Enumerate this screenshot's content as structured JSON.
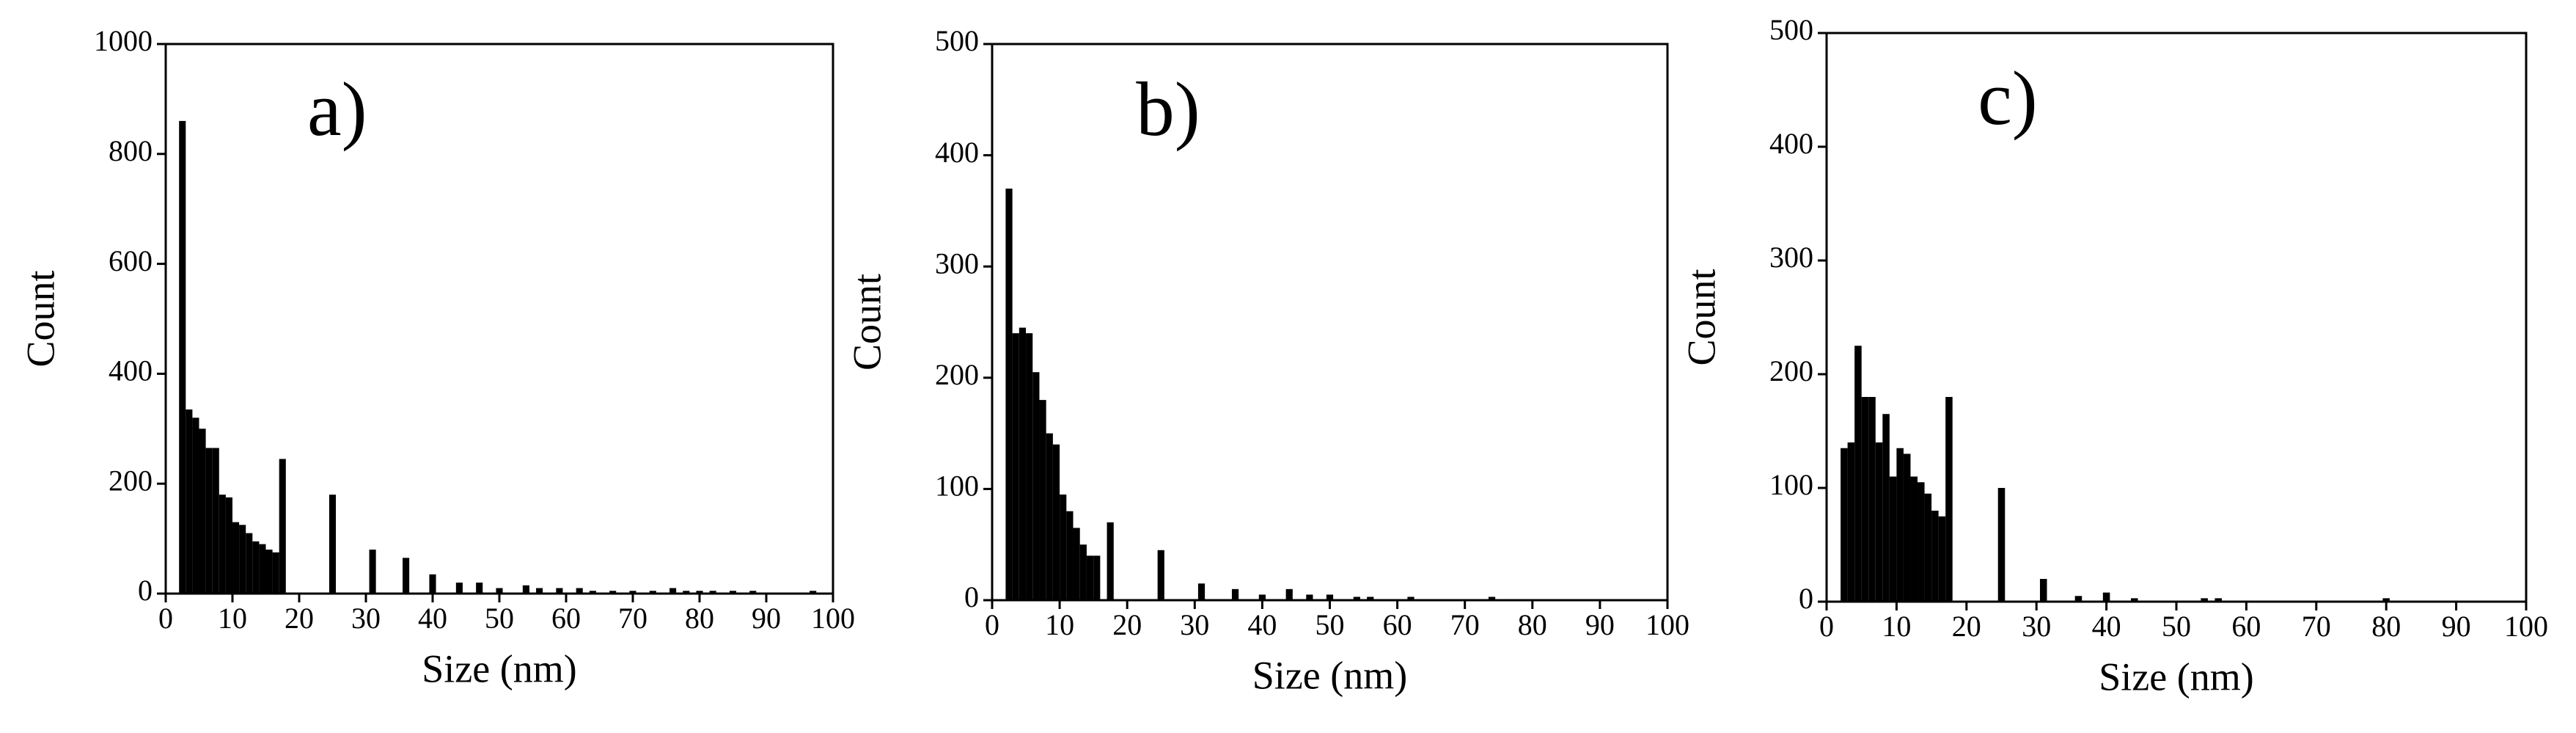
{
  "chart_data": [
    {
      "type": "bar",
      "annotation": "a)",
      "xlabel": "Size (nm)",
      "ylabel": "Count",
      "color": "#000000",
      "x": [
        2.5,
        3.5,
        4.5,
        5.5,
        6.5,
        7.5,
        8.5,
        9.5,
        10.5,
        11.5,
        12.5,
        13.5,
        14.5,
        15.5,
        16.5,
        17.5,
        25,
        31,
        36,
        40,
        44,
        47,
        50,
        54,
        56,
        59,
        62,
        64,
        67,
        70,
        73,
        76,
        78,
        80,
        82,
        85,
        88,
        97
      ],
      "values": [
        860,
        335,
        320,
        300,
        265,
        265,
        180,
        175,
        130,
        125,
        110,
        95,
        90,
        80,
        75,
        245,
        180,
        80,
        65,
        35,
        20,
        20,
        10,
        15,
        10,
        10,
        10,
        5,
        5,
        5,
        5,
        10,
        5,
        5,
        5,
        5,
        5,
        5
      ],
      "xlim": [
        0,
        100
      ],
      "xticks": [
        0,
        10,
        20,
        30,
        40,
        50,
        60,
        70,
        80,
        90,
        100
      ],
      "ylim": [
        0,
        1000
      ],
      "yticks": [
        0,
        200,
        400,
        600,
        800,
        1000
      ]
    },
    {
      "type": "bar",
      "annotation": "b)",
      "xlabel": "Size (nm)",
      "ylabel": "Count",
      "color": "#000000",
      "x": [
        2.5,
        3.5,
        4.5,
        5.5,
        6.5,
        7.5,
        8.5,
        9.5,
        10.5,
        11.5,
        12.5,
        13.5,
        14.5,
        15.5,
        17.5,
        25,
        31,
        36,
        40,
        44,
        47,
        50,
        54,
        56,
        62,
        74
      ],
      "values": [
        370,
        240,
        245,
        240,
        205,
        180,
        150,
        140,
        95,
        80,
        65,
        50,
        40,
        40,
        70,
        45,
        15,
        10,
        5,
        10,
        5,
        5,
        3,
        3,
        3,
        3
      ],
      "xlim": [
        0,
        100
      ],
      "xticks": [
        0,
        10,
        20,
        30,
        40,
        50,
        60,
        70,
        80,
        90,
        100
      ],
      "ylim": [
        0,
        500
      ],
      "yticks": [
        0,
        100,
        200,
        300,
        400,
        500
      ]
    },
    {
      "type": "bar",
      "annotation": "c)",
      "xlabel": "Size (nm)",
      "ylabel": "Count",
      "color": "#000000",
      "x": [
        2.5,
        3.5,
        4.5,
        5.5,
        6.5,
        7.5,
        8.5,
        9.5,
        10.5,
        11.5,
        12.5,
        13.5,
        14.5,
        15.5,
        16.5,
        17.5,
        25,
        31,
        36,
        40,
        44,
        54,
        56,
        80
      ],
      "values": [
        135,
        140,
        225,
        180,
        180,
        140,
        165,
        110,
        135,
        130,
        110,
        105,
        95,
        80,
        75,
        180,
        100,
        20,
        5,
        8,
        3,
        3,
        3,
        3
      ],
      "xlim": [
        0,
        100
      ],
      "xticks": [
        0,
        10,
        20,
        30,
        40,
        50,
        60,
        70,
        80,
        90,
        100
      ],
      "ylim": [
        0,
        500
      ],
      "yticks": [
        0,
        100,
        200,
        300,
        400,
        500
      ]
    }
  ]
}
